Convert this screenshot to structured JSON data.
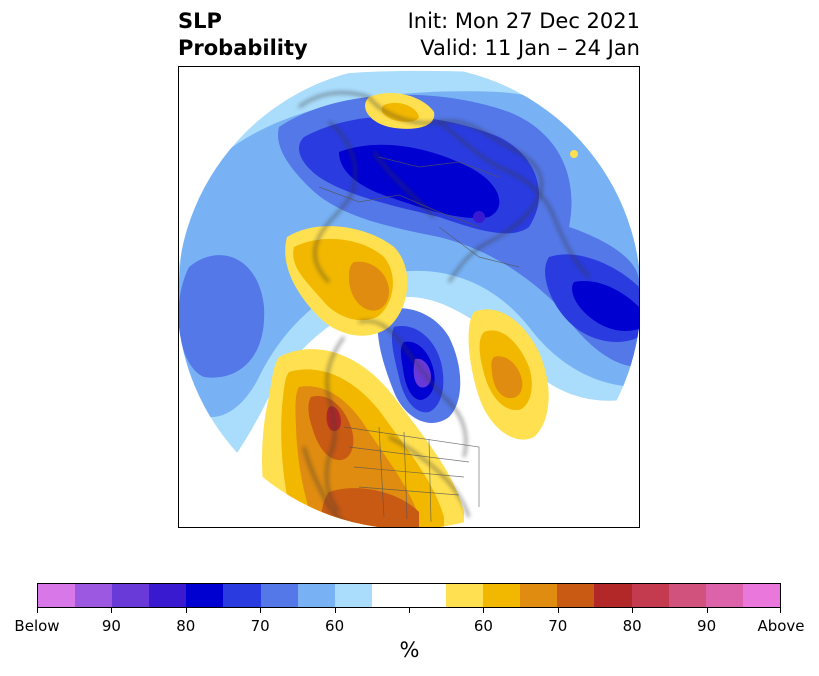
{
  "title": {
    "left_line1": "SLP",
    "left_line2": "Probability",
    "right_line1": "Init: Mon 27 Dec 2021",
    "right_line2": "Valid: 11 Jan – 24 Jan"
  },
  "map": {
    "projection": "north-polar-stereographic",
    "region": "Northern Hemisphere",
    "features": [
      "coastlines",
      "country-borders",
      "state-borders"
    ]
  },
  "colorbar": {
    "unit": "%",
    "tick_labels": [
      "Below",
      "90",
      "80",
      "70",
      "60",
      "",
      "60",
      "70",
      "80",
      "90",
      "Above"
    ],
    "colors": [
      "#d877e8",
      "#9c58e0",
      "#6a3ad8",
      "#3a1ad0",
      "#0000d0",
      "#2a3ce0",
      "#5478e8",
      "#78b2f4",
      "#aadcfc",
      "#ffffff",
      "#ffffff",
      "#ffe050",
      "#f2b800",
      "#e08c10",
      "#c85a14",
      "#b22828",
      "#c43a4e",
      "#d2527e",
      "#dc62aa",
      "#ea78dc"
    ]
  }
}
